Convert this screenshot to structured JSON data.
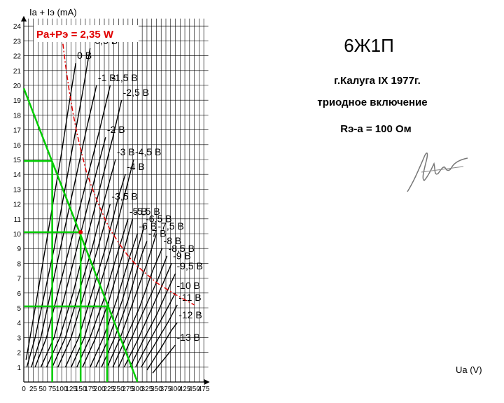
{
  "chart_data": {
    "type": "line",
    "title": "6Ж1П",
    "annotations": [
      "г.Калуга IX 1977г.",
      "триодное включение",
      "Rэ-а = 100 Ом"
    ],
    "xlabel": "Ua (V)",
    "ylabel": "Ia + Iэ (mA)",
    "xlim": [
      0,
      487
    ],
    "ylim": [
      0,
      24.5
    ],
    "xticks": [
      0,
      25,
      50,
      75,
      100,
      125,
      150,
      175,
      200,
      225,
      250,
      275,
      300,
      325,
      350,
      375,
      400,
      425,
      450,
      475
    ],
    "yticks": [
      1,
      2,
      3,
      4,
      5,
      6,
      7,
      8,
      9,
      10,
      11,
      12,
      13,
      14,
      15,
      16,
      17,
      18,
      19,
      20,
      21,
      22,
      23,
      24
    ],
    "grid": true,
    "curve_color": "#000000",
    "curves": [
      {
        "label": "0 В",
        "x": [
          6,
          20,
          40,
          60,
          80,
          100,
          118,
          137
        ],
        "y": [
          1.5,
          3.5,
          6.5,
          9.5,
          12.5,
          15.5,
          18.5,
          21.5
        ]
      },
      {
        "label": "-0,5 В",
        "x": [
          8,
          30,
          55,
          80,
          105,
          130,
          155,
          175
        ],
        "y": [
          1.0,
          3.0,
          6.0,
          9.0,
          12.5,
          16.0,
          19.5,
          22.5
        ]
      },
      {
        "label": "-1 В",
        "x": [
          20,
          45,
          75,
          105,
          135,
          165,
          192
        ],
        "y": [
          1.0,
          3.0,
          6.5,
          10.0,
          13.5,
          17.0,
          20.0
        ]
      },
      {
        "label": "-1,5 В",
        "x": [
          30,
          60,
          95,
          130,
          165,
          200,
          228
        ],
        "y": [
          1.0,
          3.0,
          6.5,
          10.0,
          13.5,
          17.0,
          20.0
        ]
      },
      {
        "label": "-2 В",
        "x": [
          45,
          80,
          115,
          150,
          185,
          216
        ],
        "y": [
          1.0,
          3.0,
          6.5,
          10.0,
          13.5,
          16.5
        ]
      },
      {
        "label": "-2,5 В",
        "x": [
          60,
          95,
          130,
          165,
          200,
          235,
          258
        ],
        "y": [
          1.0,
          3.0,
          6.0,
          9.5,
          13.0,
          16.5,
          19.0
        ]
      },
      {
        "label": "-3 В",
        "x": [
          75,
          110,
          145,
          180,
          215,
          242
        ],
        "y": [
          1.0,
          3.0,
          6.0,
          9.0,
          12.5,
          15.0
        ]
      },
      {
        "label": "-3,5 В",
        "x": [
          90,
          125,
          160,
          195,
          228
        ],
        "y": [
          1.0,
          3.0,
          6.0,
          9.0,
          12.0
        ]
      },
      {
        "label": "-4 В",
        "x": [
          110,
          145,
          180,
          215,
          250,
          268
        ],
        "y": [
          1.0,
          3.0,
          6.0,
          9.0,
          12.5,
          14.0
        ]
      },
      {
        "label": "-4,5 В",
        "x": [
          125,
          160,
          195,
          230,
          265,
          290
        ],
        "y": [
          1.0,
          3.0,
          6.0,
          9.0,
          12.5,
          15.0
        ]
      },
      {
        "label": "-5 В",
        "x": [
          140,
          175,
          210,
          245,
          275
        ],
        "y": [
          1.0,
          3.0,
          5.5,
          8.5,
          11.0
        ]
      },
      {
        "label": "-5,5 В",
        "x": [
          155,
          190,
          225,
          260,
          287
        ],
        "y": [
          1.0,
          3.0,
          5.5,
          8.5,
          11.0
        ]
      },
      {
        "label": "-6 В",
        "x": [
          175,
          210,
          245,
          280,
          300
        ],
        "y": [
          1.0,
          3.0,
          5.5,
          8.5,
          10.0
        ]
      },
      {
        "label": "-6,5 В",
        "x": [
          190,
          225,
          260,
          295,
          318
        ],
        "y": [
          1.0,
          3.0,
          5.5,
          8.5,
          10.5
        ]
      },
      {
        "label": "-7 В",
        "x": [
          205,
          240,
          275,
          310,
          325
        ],
        "y": [
          1.0,
          3.0,
          5.5,
          8.5,
          9.5
        ]
      },
      {
        "label": "-7,5 В",
        "x": [
          220,
          255,
          290,
          325,
          350
        ],
        "y": [
          1.0,
          3.0,
          5.5,
          8.0,
          10.0
        ]
      },
      {
        "label": "-8 В",
        "x": [
          235,
          270,
          305,
          340,
          365
        ],
        "y": [
          1.0,
          3.0,
          5.0,
          7.5,
          9.0
        ]
      },
      {
        "label": "-8,5 В",
        "x": [
          250,
          285,
          320,
          355,
          378
        ],
        "y": [
          1.0,
          3.0,
          5.0,
          7.0,
          8.5
        ]
      },
      {
        "label": "-9 В",
        "x": [
          265,
          300,
          335,
          370,
          390
        ],
        "y": [
          1.0,
          2.8,
          4.8,
          6.8,
          8.0
        ]
      },
      {
        "label": "-9,5 В",
        "x": [
          280,
          315,
          350,
          385,
          400
        ],
        "y": [
          1.0,
          2.8,
          4.5,
          6.5,
          7.3
        ]
      },
      {
        "label": "-10 В",
        "x": [
          295,
          330,
          365,
          400
        ],
        "y": [
          1.0,
          2.7,
          4.3,
          6.0
        ]
      },
      {
        "label": "-11 В",
        "x": [
          310,
          345,
          380,
          405
        ],
        "y": [
          1.0,
          2.5,
          4.0,
          5.2
        ]
      },
      {
        "label": "-12 В",
        "x": [
          325,
          360,
          390,
          405
        ],
        "y": [
          0.8,
          2.2,
          3.5,
          4.0
        ]
      },
      {
        "label": "-13 В",
        "x": [
          340,
          375,
          400
        ],
        "y": [
          0.6,
          1.7,
          2.5
        ]
      }
    ],
    "power_limit": {
      "label": "Pa+Pэ = 2,35 W",
      "color": "#e00000",
      "x": [
        100,
        110,
        120,
        130,
        140,
        150,
        165,
        180,
        200,
        225,
        250,
        275,
        300,
        350,
        400,
        450
      ],
      "y": [
        23.5,
        21.4,
        19.6,
        18.1,
        16.8,
        15.7,
        14.2,
        13.1,
        11.8,
        10.4,
        9.4,
        8.5,
        7.8,
        6.7,
        5.9,
        5.2
      ]
    },
    "load_line": {
      "color": "#00cc00",
      "x": [
        0,
        300
      ],
      "y": [
        19.8,
        0
      ]
    },
    "operating_points": [
      {
        "x": 75,
        "y": 14.9
      },
      {
        "x": 150,
        "y": 10.1
      },
      {
        "x": 220,
        "y": 5.1
      }
    ]
  }
}
